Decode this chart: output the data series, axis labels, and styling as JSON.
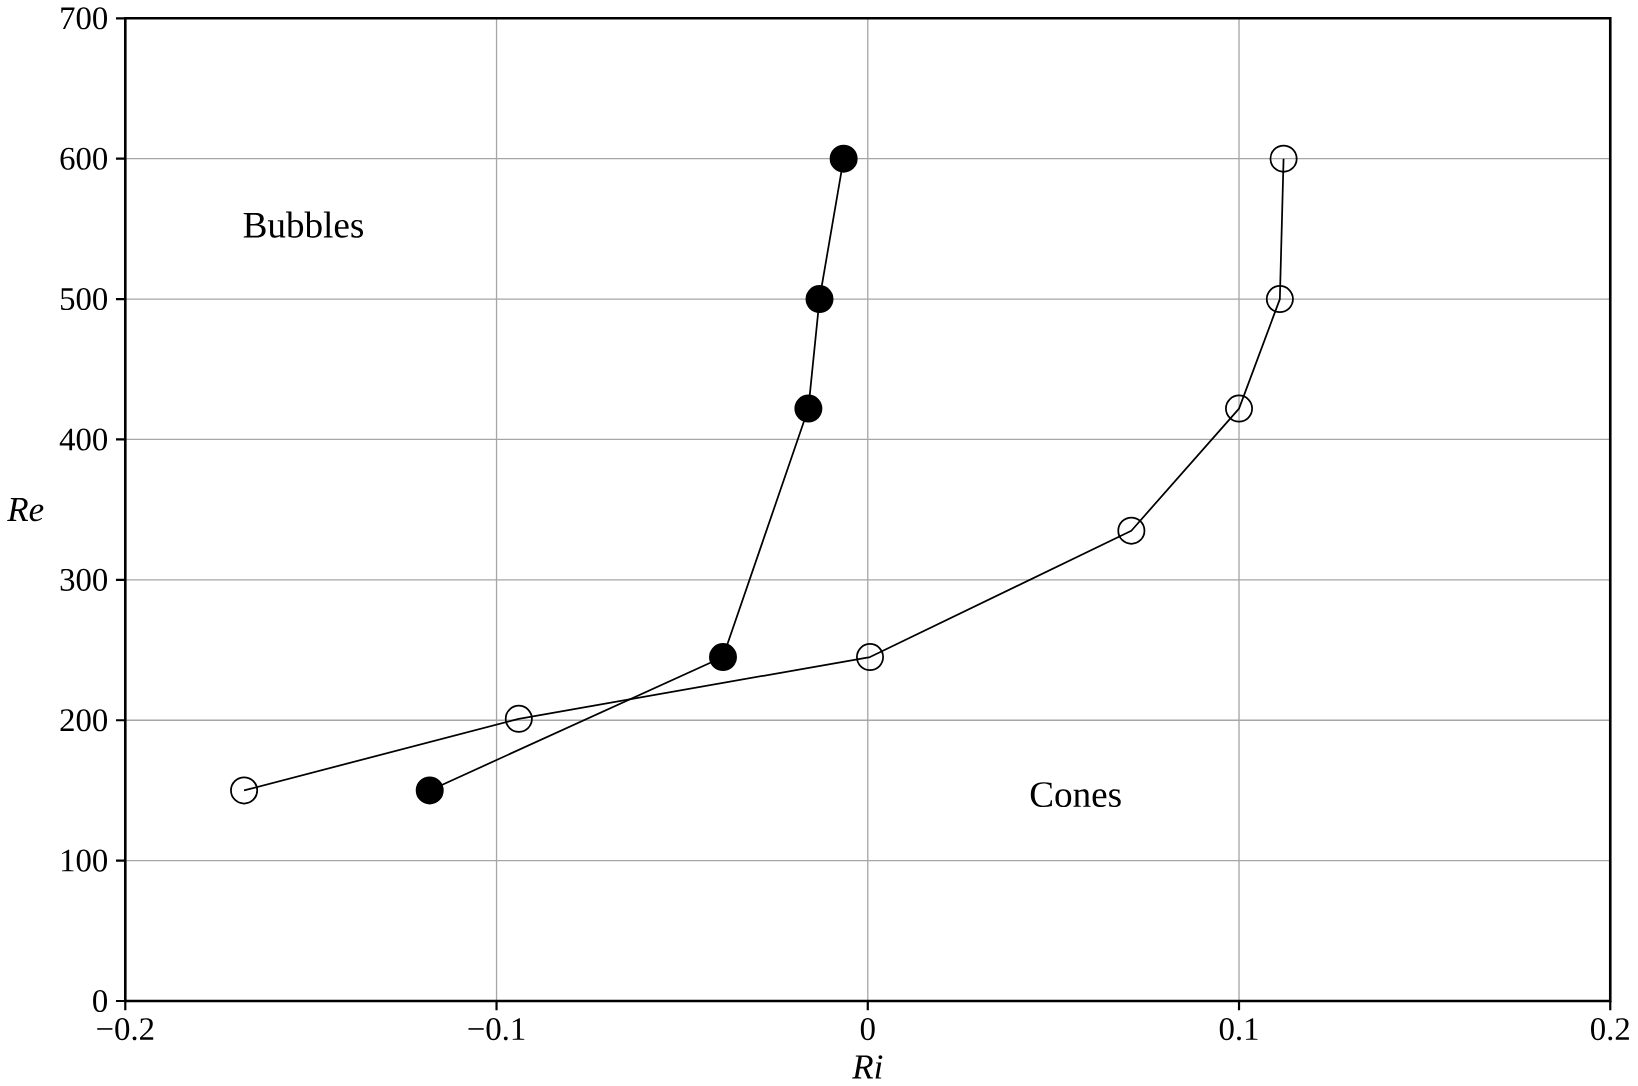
{
  "chart_data": {
    "type": "line",
    "xlabel": "*Ri*",
    "ylabel": "*Re*",
    "xlim": [
      -0.2,
      0.2
    ],
    "xticks": [
      {
        "value": -0.2,
        "label": "−0.2"
      },
      {
        "value": -0.1,
        "label": "−0.1"
      },
      0,
      0.1,
      0.2
    ],
    "ylim": [
      0,
      700
    ],
    "yticks": [
      0,
      100,
      200,
      300,
      400,
      500,
      600,
      700
    ],
    "grid": true,
    "line_style": "solid",
    "series": [
      {
        "color": "#000000",
        "marker": "circle",
        "x": [
          -0.118,
          -0.039,
          -0.016,
          -0.013,
          -0.0065
        ],
        "values": [
          150,
          245,
          422,
          500,
          600
        ]
      },
      {
        "color": "#000000",
        "marker": "open circle",
        "x": [
          -0.168,
          -0.094,
          0.0006,
          0.071,
          0.1,
          0.111,
          0.112
        ],
        "values": [
          150,
          201,
          245,
          335,
          422,
          500,
          600
        ]
      }
    ],
    "annotations": [
      "Bubbles",
      "Cones"
    ]
  }
}
